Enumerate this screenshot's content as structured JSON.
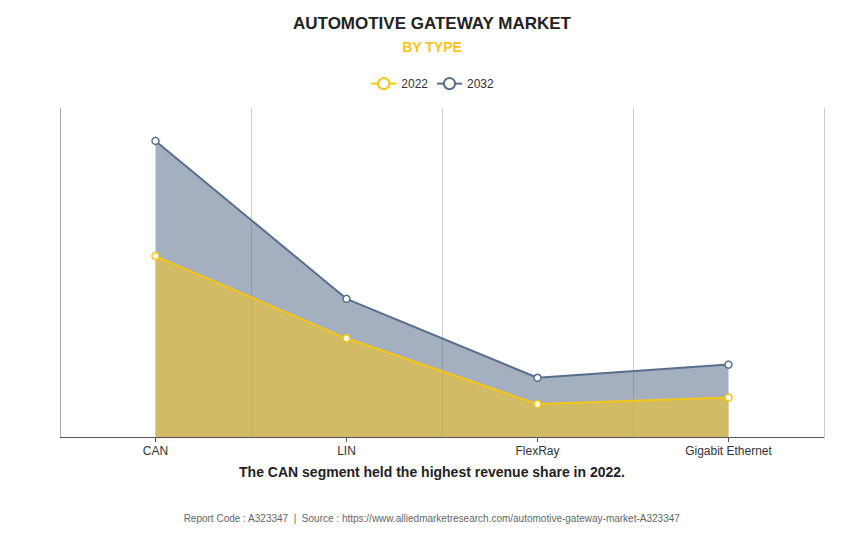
{
  "chart_data": {
    "type": "area",
    "title": "AUTOMOTIVE GATEWAY MARKET",
    "subtitle": "BY TYPE",
    "categories": [
      "CAN",
      "LIN",
      "FlexRay",
      "Gigabit Ethernet"
    ],
    "series": [
      {
        "name": "2022",
        "color": "#f5c518",
        "values": [
          55,
          30,
          10,
          12
        ]
      },
      {
        "name": "2032",
        "color": "#5a6e8c",
        "values": [
          90,
          42,
          18,
          22
        ]
      }
    ],
    "ylim": [
      0,
      100
    ],
    "grid": true,
    "tick_labels": "x",
    "marker": "circle",
    "annotations": [
      "The CAN segment held the highest revenue share in 2022.",
      "Report Code : A323347  |  Source : https://www.alliedmarketresearch.com/automotive-gateway-market-A323347"
    ]
  }
}
